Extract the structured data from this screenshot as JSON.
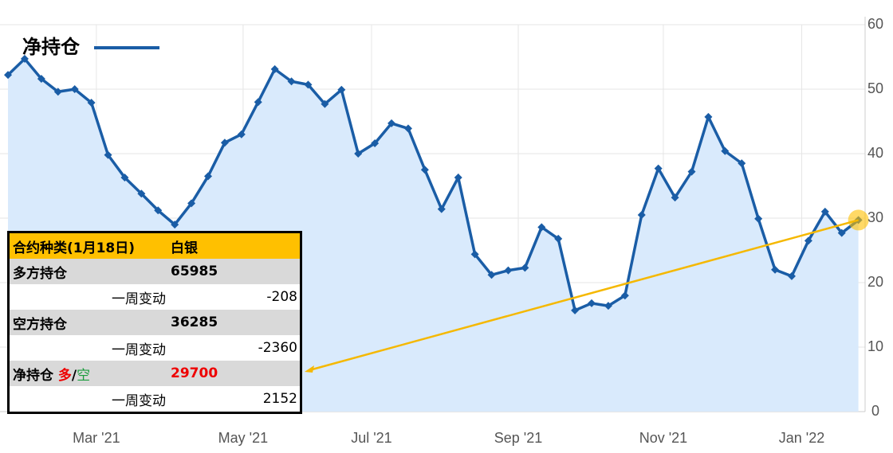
{
  "chart_data": {
    "type": "line",
    "x": [
      0,
      1,
      2,
      3,
      4,
      5,
      6,
      7,
      8,
      9,
      10,
      11,
      12,
      13,
      14,
      15,
      16,
      17,
      18,
      19,
      20,
      21,
      22,
      23,
      24,
      25,
      26,
      27,
      28,
      29,
      30,
      31,
      32,
      33,
      34,
      35,
      36,
      37,
      38,
      39,
      40,
      41,
      42,
      43,
      44,
      45,
      46,
      47,
      48,
      49,
      50,
      51
    ],
    "series": [
      {
        "name": "净持仓",
        "color": "#1a5da6",
        "values": [
          52.2,
          54.7,
          51.6,
          49.6,
          50.0,
          47.9,
          39.8,
          36.3,
          33.8,
          31.2,
          29.0,
          32.3,
          36.5,
          41.7,
          43.0,
          48.0,
          53.1,
          51.2,
          50.7,
          47.7,
          49.9,
          40.0,
          41.6,
          44.7,
          43.9,
          37.5,
          31.4,
          36.3,
          24.4,
          21.2,
          21.9,
          22.3,
          28.6,
          26.8,
          15.7,
          16.8,
          16.4,
          18.0,
          30.5,
          37.7,
          33.2,
          37.2,
          45.7,
          40.4,
          38.5,
          29.9,
          22.0,
          21.0,
          26.5,
          31.0,
          27.7,
          29.7
        ]
      }
    ],
    "xlim": [
      -0.48,
      51.4
    ],
    "xticks": [
      {
        "value": 5.3,
        "label": "Mar '21"
      },
      {
        "value": 14.1,
        "label": "May '21"
      },
      {
        "value": 21.8,
        "label": "Jul '21"
      },
      {
        "value": 30.6,
        "label": "Sep '21"
      },
      {
        "value": 39.3,
        "label": "Nov '21"
      },
      {
        "value": 47.6,
        "label": "Jan '22"
      }
    ],
    "ylim": [
      0,
      60
    ],
    "yticks": [
      0,
      10,
      20,
      30,
      40,
      50,
      60
    ],
    "grid": true,
    "area_color": "#d9eafc",
    "legend": "top-left"
  },
  "table": {
    "header": [
      "合约种类(1月18日)",
      "白银"
    ],
    "long": {
      "label": "多方持仓",
      "value": 65985,
      "change_label": "一周变动",
      "change": -208
    },
    "short": {
      "label": "空方持仓",
      "value": 36285,
      "change_label": "一周变动",
      "change": -2360
    },
    "net": {
      "label": "净持仓",
      "long": "多",
      "slash": "/",
      "short": "空",
      "value": 29700,
      "change_label": "一周变动",
      "change": 2152
    }
  }
}
